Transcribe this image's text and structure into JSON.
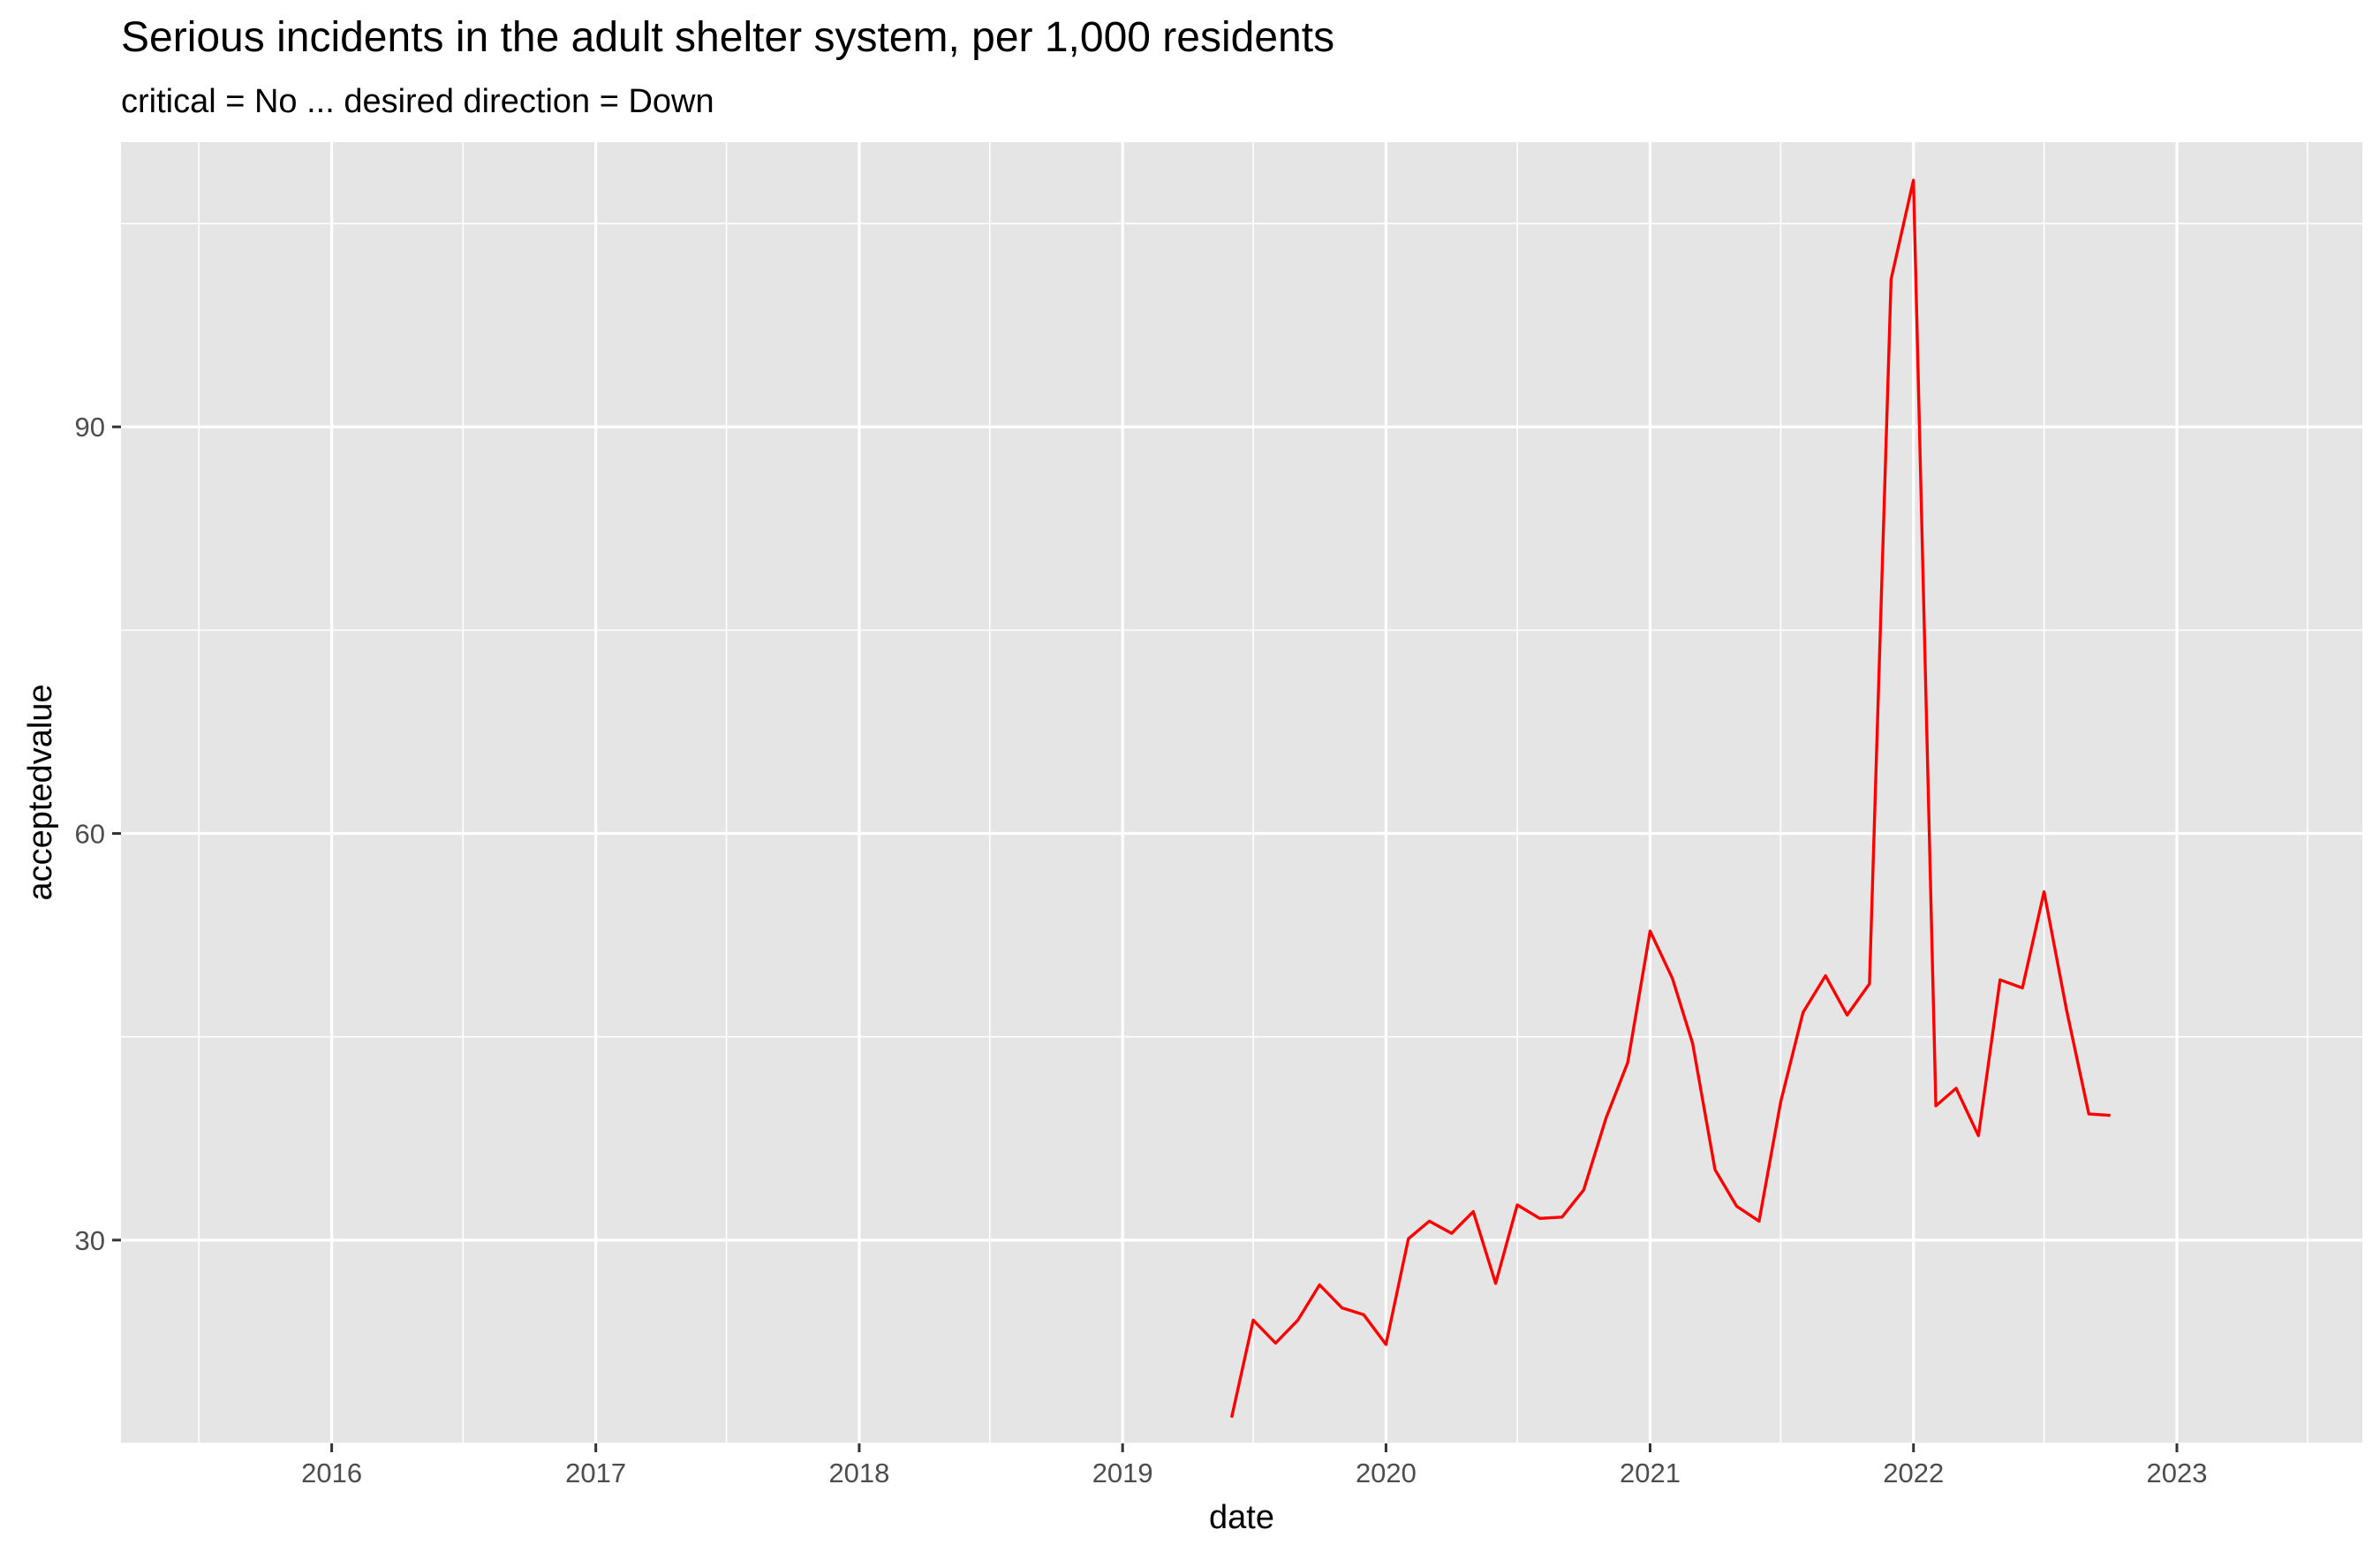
{
  "chart_data": {
    "type": "line",
    "title": "Serious incidents in the adult shelter system, per 1,000 residents",
    "subtitle": "critical = No ... desired direction = Down",
    "xlabel": "date",
    "ylabel": "acceptedvalue",
    "x_ticks": [
      "2016",
      "2017",
      "2018",
      "2019",
      "2020",
      "2021",
      "2022",
      "2023"
    ],
    "y_ticks": [
      30,
      60,
      90
    ],
    "xlim": [
      "2015-03-15",
      "2023-09-15"
    ],
    "ylim": [
      15.0,
      111.0
    ],
    "grid": true,
    "legend": "none",
    "series": [
      {
        "color": "#ff0000",
        "x": [
          "2019-06-01",
          "2019-07-01",
          "2019-08-01",
          "2019-09-01",
          "2019-10-01",
          "2019-11-01",
          "2019-12-01",
          "2020-01-01",
          "2020-02-01",
          "2020-03-01",
          "2020-04-01",
          "2020-05-01",
          "2020-06-01",
          "2020-07-01",
          "2020-08-01",
          "2020-09-01",
          "2020-10-01",
          "2020-11-01",
          "2020-12-01",
          "2021-01-01",
          "2021-02-01",
          "2021-03-01",
          "2021-04-01",
          "2021-05-01",
          "2021-06-01",
          "2021-07-01",
          "2021-08-01",
          "2021-09-01",
          "2021-10-01",
          "2021-11-01",
          "2021-12-01",
          "2022-01-01",
          "2022-02-01",
          "2022-03-01",
          "2022-04-01",
          "2022-05-01",
          "2022-06-01",
          "2022-07-01",
          "2022-08-01",
          "2022-09-01",
          "2022-10-01"
        ],
        "values": [
          16.9,
          24.1,
          22.4,
          24.1,
          26.7,
          25.0,
          24.5,
          22.3,
          30.1,
          31.4,
          30.5,
          32.1,
          26.8,
          32.6,
          31.6,
          31.7,
          33.7,
          39.0,
          43.1,
          52.8,
          49.3,
          44.5,
          35.2,
          32.5,
          31.4,
          40.2,
          46.8,
          49.5,
          46.6,
          48.9,
          100.9,
          108.2,
          39.9,
          41.2,
          37.7,
          49.2,
          48.6,
          55.7,
          47.0,
          39.3,
          39.2
        ]
      }
    ]
  }
}
